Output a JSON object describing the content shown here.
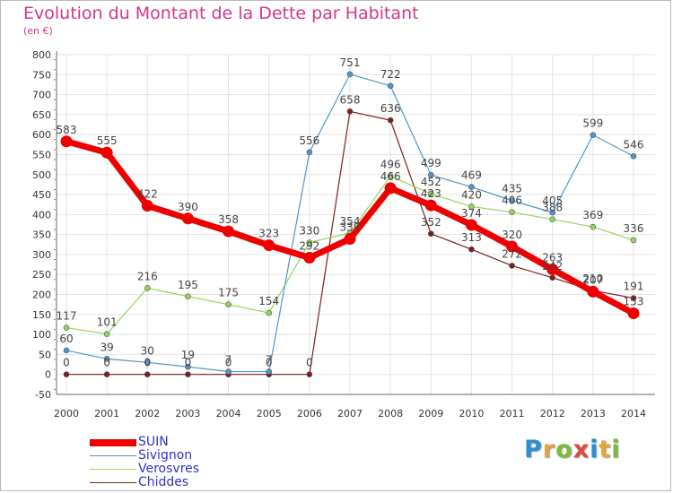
{
  "title": "Evolution du Montant de la Dette par Habitant",
  "subtitle": "(en €)",
  "logo": {
    "letters": [
      "P",
      "r",
      "o",
      "x",
      "i",
      "t",
      "i"
    ],
    "colors": [
      "#2a8fd6",
      "#e8a33a",
      "#7bbd3b",
      "#e04a3a",
      "#2a8fd6",
      "#e8a33a",
      "#7bbd3b"
    ]
  },
  "chart_data": {
    "type": "line",
    "x": [
      "2000",
      "2001",
      "2002",
      "2003",
      "2004",
      "2005",
      "2006",
      "2007",
      "2008",
      "2009",
      "2010",
      "2011",
      "2012",
      "2013",
      "2014"
    ],
    "ylim": [
      -50,
      800
    ],
    "yticks": [
      "-50",
      "0",
      "50",
      "100",
      "150",
      "200",
      "250",
      "300",
      "350",
      "400",
      "450",
      "500",
      "550",
      "600",
      "650",
      "700",
      "750",
      "800"
    ],
    "grid": true,
    "legend_position": "bottom-left",
    "series": [
      {
        "name": "Chiddes",
        "color": "#7b1f1f",
        "values": [
          0,
          0,
          0,
          0,
          0,
          0,
          0,
          658,
          636,
          352,
          313,
          272,
          242,
          210,
          191
        ],
        "labels": [
          "0",
          "0",
          "0",
          "0",
          "0",
          "0",
          "0",
          "658",
          "636",
          "352",
          "313",
          "272",
          "242",
          "210",
          "191"
        ]
      },
      {
        "name": "Verosvres",
        "color": "#8fd65a",
        "values": [
          117,
          101,
          216,
          195,
          175,
          154,
          330,
          354,
          496,
          452,
          420,
          406,
          388,
          369,
          336
        ],
        "labels": [
          "117",
          "101",
          "216",
          "195",
          "175",
          "154",
          "330",
          "354",
          "496",
          "452",
          "420",
          "406",
          "388",
          "369",
          "336"
        ]
      },
      {
        "name": "Sivignon",
        "color": "#4f95cc",
        "values": [
          60,
          39,
          30,
          19,
          7,
          7,
          556,
          751,
          722,
          499,
          469,
          435,
          405,
          599,
          546
        ],
        "labels": [
          "60",
          "39",
          "30",
          "19",
          "7",
          "7",
          "556",
          "751",
          "722",
          "499",
          "469",
          "435",
          "405",
          "599",
          "546"
        ]
      },
      {
        "name": "SUIN",
        "color": "#ee0000",
        "values": [
          583,
          555,
          422,
          390,
          358,
          323,
          292,
          339,
          466,
          423,
          374,
          320,
          263,
          207,
          153
        ],
        "labels": [
          "583",
          "555",
          "422",
          "390",
          "358",
          "323",
          "292",
          "339",
          "466",
          "423",
          "374",
          "320",
          "263",
          "207",
          "153"
        ]
      }
    ],
    "legend": [
      "SUIN",
      "Sivignon",
      "Verosvres",
      "Chiddes"
    ]
  }
}
